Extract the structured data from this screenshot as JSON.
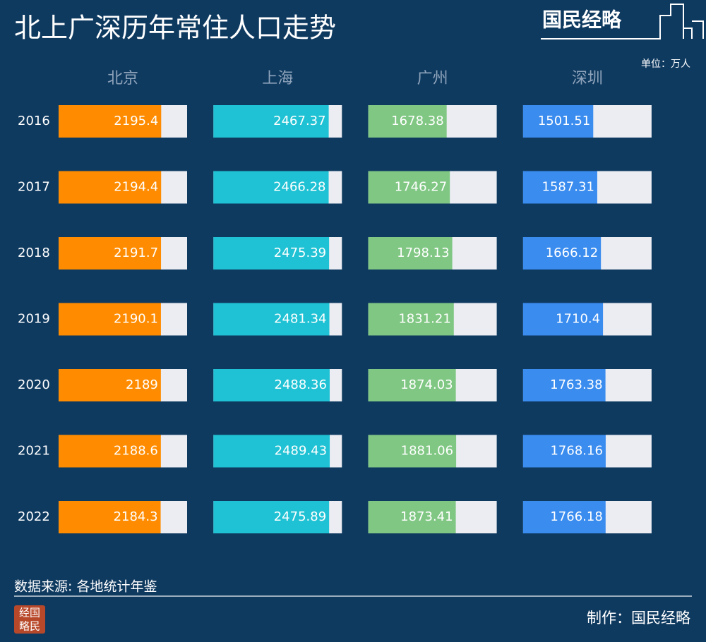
{
  "chart_data": {
    "type": "bar",
    "orientation": "horizontal",
    "title": "北上广深历年常住人口走势",
    "unit": "单位：万人",
    "categories": [
      "2016",
      "2017",
      "2018",
      "2019",
      "2020",
      "2021",
      "2022"
    ],
    "xlim": [
      0,
      2750
    ],
    "series": [
      {
        "name": "北京",
        "color": "#ff8c00",
        "values": [
          2195.4,
          2194.4,
          2191.7,
          2190.1,
          2189,
          2188.6,
          2184.3
        ]
      },
      {
        "name": "上海",
        "color": "#1fc2d4",
        "values": [
          2467.37,
          2466.28,
          2475.39,
          2481.34,
          2488.36,
          2489.43,
          2475.89
        ]
      },
      {
        "name": "广州",
        "color": "#80c783",
        "values": [
          1678.38,
          1746.27,
          1798.13,
          1831.21,
          1874.03,
          1881.06,
          1873.41
        ]
      },
      {
        "name": "深圳",
        "color": "#3a8cef",
        "values": [
          1501.51,
          1587.31,
          1666.12,
          1710.4,
          1763.38,
          1768.16,
          1766.18
        ]
      }
    ]
  },
  "header": {
    "logo": "国民经略"
  },
  "footer": {
    "source": "数据来源: 各地统计年鉴",
    "credit": "制作：国民经略",
    "seal": [
      "经国",
      "略民"
    ]
  }
}
